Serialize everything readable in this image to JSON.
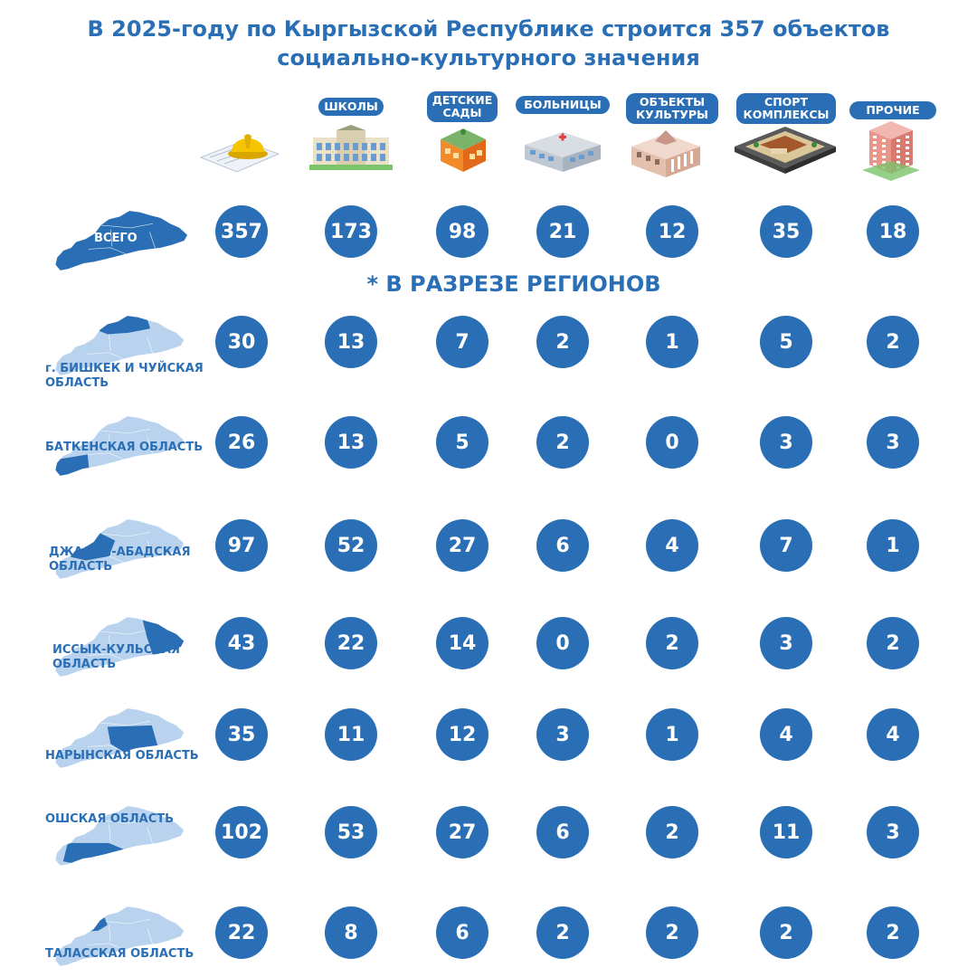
{
  "title": {
    "line1": "В 2025-году по Кыргызской Республике строится 357 объектов",
    "line2": "социально-культурного значения"
  },
  "subheading": "* В РАЗРЕЗЕ РЕГИОНОВ",
  "colors": {
    "accent": "#2a6fb5",
    "map_light": "#b9d3ee",
    "map_dark": "#2a6fb5"
  },
  "categories": [
    {
      "id": "schools",
      "lines": [
        "ШКОЛЫ"
      ],
      "icon": "school-building-icon"
    },
    {
      "id": "kindergartens",
      "lines": [
        "ДЕТСКИЕ",
        "САДЫ"
      ],
      "icon": "kindergarten-building-icon"
    },
    {
      "id": "hospitals",
      "lines": [
        "БОЛЬНИЦЫ"
      ],
      "icon": "hospital-building-icon"
    },
    {
      "id": "culture",
      "lines": [
        "ОБЪЕКТЫ",
        "КУЛЬТУРЫ"
      ],
      "icon": "culture-building-icon"
    },
    {
      "id": "sport",
      "lines": [
        "СПОРТ",
        "КОМПЛЕКСЫ"
      ],
      "icon": "sport-complex-icon"
    },
    {
      "id": "other",
      "lines": [
        "ПРОЧИЕ"
      ],
      "icon": "other-building-icon"
    }
  ],
  "total_icon": "construction-helmet-blueprint-icon",
  "chart_data": {
    "type": "table",
    "title": "В 2025-году по Кыргызской Республике строится 357 объектов социально-культурного значения",
    "columns": [
      "ВСЕГО",
      "ШКОЛЫ",
      "ДЕТСКИЕ САДЫ",
      "БОЛЬНИЦЫ",
      "ОБЪЕКТЫ КУЛЬТУРЫ",
      "СПОРТ КОМПЛЕКСЫ",
      "ПРОЧИЕ"
    ],
    "total": {
      "label": "ВСЕГО",
      "values": [
        357,
        173,
        98,
        21,
        12,
        35,
        18
      ]
    },
    "regions": [
      {
        "lines": [
          "г. БИШКЕК И ЧУЙСКАЯ",
          "ОБЛАСТЬ"
        ],
        "highlight": "chui",
        "values": [
          30,
          13,
          7,
          2,
          1,
          5,
          2
        ]
      },
      {
        "lines": [
          "БАТКЕНСКАЯ ОБЛАСТЬ"
        ],
        "highlight": "batken",
        "values": [
          26,
          13,
          5,
          2,
          0,
          3,
          3
        ]
      },
      {
        "lines": [
          "ДЖАЛАЛ-АБАДСКАЯ",
          "ОБЛАСТЬ"
        ],
        "highlight": "jalalabad",
        "values": [
          97,
          52,
          27,
          6,
          4,
          7,
          1
        ]
      },
      {
        "lines": [
          "ИССЫК-КУЛЬСКАЯ",
          "ОБЛАСТЬ"
        ],
        "highlight": "issykkul",
        "values": [
          43,
          22,
          14,
          0,
          2,
          3,
          2
        ]
      },
      {
        "lines": [
          "НАРЫНСКАЯ ОБЛАСТЬ"
        ],
        "highlight": "naryn",
        "values": [
          35,
          11,
          12,
          3,
          1,
          4,
          4
        ]
      },
      {
        "lines": [
          "ОШСКАЯ ОБЛАСТЬ"
        ],
        "highlight": "osh",
        "values": [
          102,
          53,
          27,
          6,
          2,
          11,
          3
        ]
      },
      {
        "lines": [
          "ТАЛАССКАЯ ОБЛАСТЬ"
        ],
        "highlight": "talas",
        "values": [
          22,
          8,
          6,
          2,
          2,
          2,
          2
        ]
      }
    ]
  }
}
